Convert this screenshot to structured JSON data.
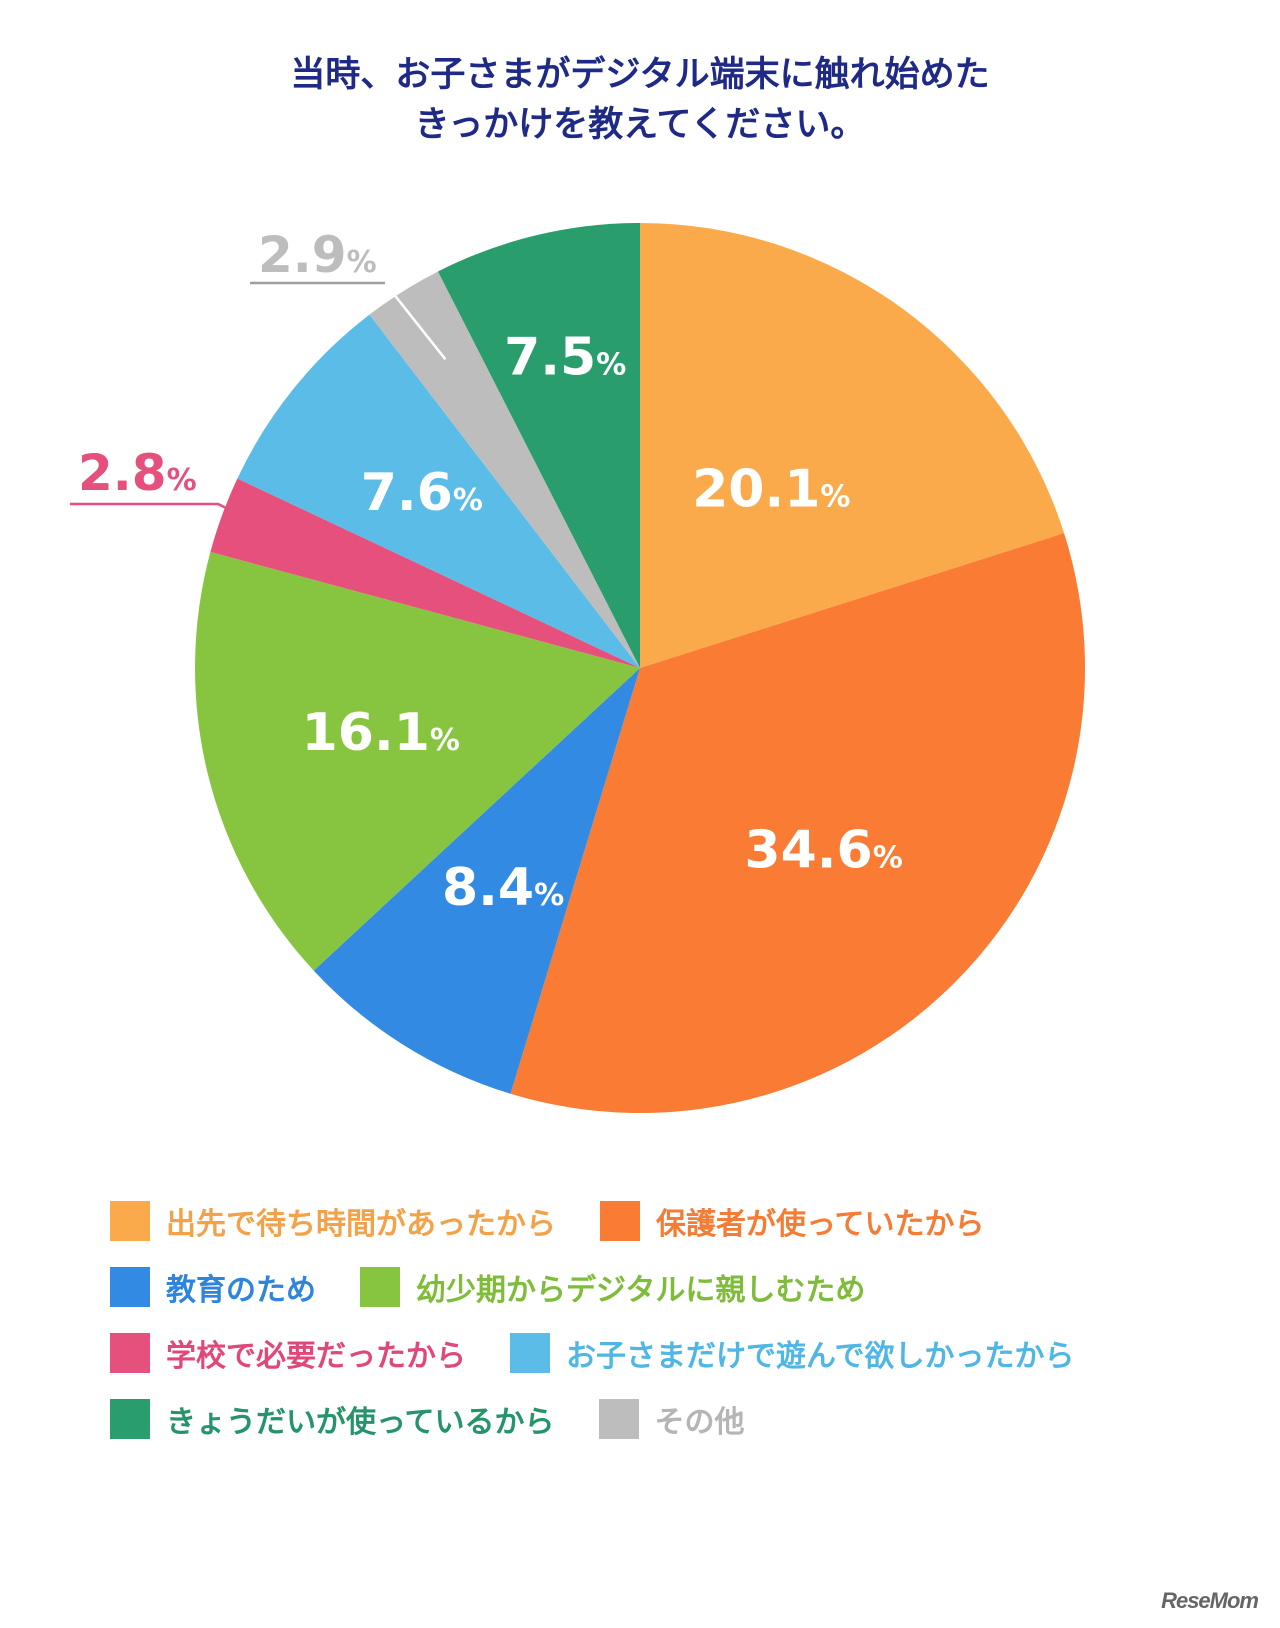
{
  "title": {
    "line1": "当時、お子さまがデジタル端末に触れ始めた",
    "line2": "きっかけを教えてください。"
  },
  "chart_data": {
    "type": "pie",
    "start": "12 o'clock, clockwise",
    "slices": [
      {
        "label": "出先で待ち時間があったから",
        "value": 20.1,
        "display": "20.1",
        "color": "#fbaa4b",
        "label_pos": "inside",
        "text_color": "#ffffff"
      },
      {
        "label": "保護者が使っていたから",
        "value": 34.6,
        "display": "34.6",
        "color": "#f97b34",
        "label_pos": "inside",
        "text_color": "#ffffff"
      },
      {
        "label": "教育のため",
        "value": 8.4,
        "display": "8.4",
        "color": "#338ae2",
        "label_pos": "inside",
        "text_color": "#ffffff"
      },
      {
        "label": "幼少期からデジタルに親しむため",
        "value": 16.1,
        "display": "16.1",
        "color": "#87c540",
        "label_pos": "inside",
        "text_color": "#ffffff"
      },
      {
        "label": "学校で必要だったから",
        "value": 2.8,
        "display": "2.8",
        "color": "#e5507d",
        "label_pos": "outside",
        "text_color": "#e5507d"
      },
      {
        "label": "お子さまだけで遊んで欲しかったから",
        "value": 7.6,
        "display": "7.6",
        "color": "#5bbce8",
        "label_pos": "inside",
        "text_color": "#ffffff"
      },
      {
        "label": "その他",
        "value": 2.9,
        "display": "2.9",
        "color": "#bdbdbd",
        "label_pos": "outside",
        "text_color": "#bdbdbd"
      },
      {
        "label": "きょうだいが使っているから",
        "value": 7.5,
        "display": "7.5",
        "color": "#2a9d6c",
        "label_pos": "inside",
        "text_color": "#ffffff"
      }
    ],
    "unit": "%"
  },
  "legend": {
    "rows": [
      [
        {
          "label": "出先で待ち時間があったから",
          "color": "#fbaa4b",
          "text_color": "#f4a24a"
        },
        {
          "label": "保護者が使っていたから",
          "color": "#f97b34",
          "text_color": "#f47c34"
        }
      ],
      [
        {
          "label": "教育のため",
          "color": "#338ae2",
          "text_color": "#2f84dc"
        },
        {
          "label": "幼少期からデジタルに親しむため",
          "color": "#87c540",
          "text_color": "#7fbc3a"
        }
      ],
      [
        {
          "label": "学校で必要だったから",
          "color": "#e5507d",
          "text_color": "#e1487a"
        },
        {
          "label": "お子さまだけで遊んで欲しかったから",
          "color": "#5bbce8",
          "text_color": "#4fb6e5"
        }
      ],
      [
        {
          "label": "きょうだいが使っているから",
          "color": "#2a9d6c",
          "text_color": "#26946a"
        },
        {
          "label": "その他",
          "color": "#bdbdbd",
          "text_color": "#b5b5b5"
        }
      ]
    ]
  },
  "brand": {
    "text": "ReseMom"
  }
}
